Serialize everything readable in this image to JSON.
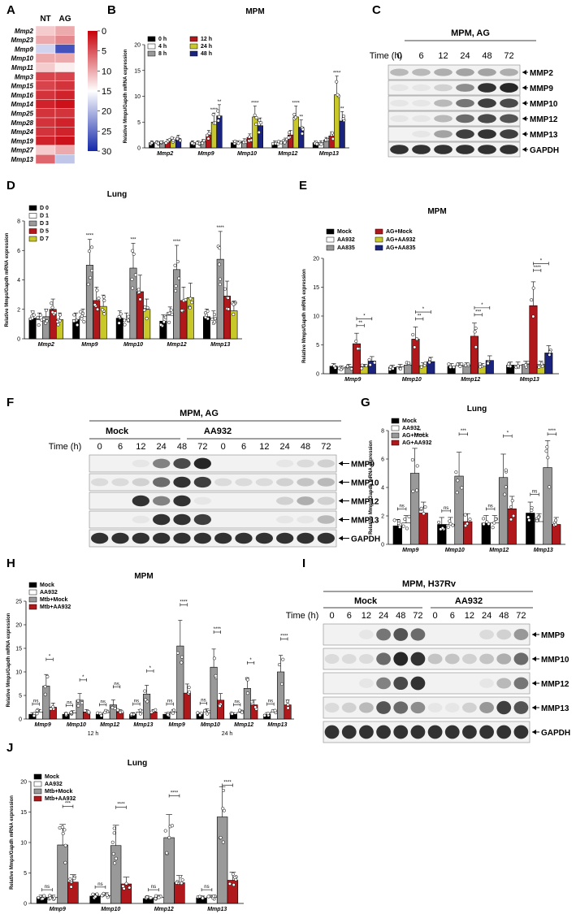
{
  "colors": {
    "black": "#000000",
    "white": "#ffffff",
    "grey": "#999999",
    "red": "#b0181c",
    "olive": "#c8c82a",
    "navy": "#1a237e"
  },
  "panel_A": {
    "letter": "A",
    "columns": [
      "NT",
      "AG"
    ],
    "genes": [
      "Mmp2",
      "Mmp23",
      "Mmp9",
      "Mmp10",
      "Mmp11",
      "Mmp3",
      "Mmp15",
      "Mmp16",
      "Mmp14",
      "Mmp25",
      "Mmp28",
      "Mmp24",
      "Mmp19",
      "Mmp27",
      "Mmp13"
    ],
    "values": [
      [
        12,
        10
      ],
      [
        10,
        8
      ],
      [
        18,
        27
      ],
      [
        10,
        10
      ],
      [
        12,
        14
      ],
      [
        4,
        4
      ],
      [
        4,
        3
      ],
      [
        3,
        2
      ],
      [
        2,
        1
      ],
      [
        3,
        3
      ],
      [
        3,
        2
      ],
      [
        3,
        2
      ],
      [
        2,
        1
      ],
      [
        12,
        10
      ],
      [
        6,
        19
      ]
    ],
    "colorbar_ticks": [
      "0",
      "5",
      "10",
      "15",
      "20",
      "25",
      "30"
    ]
  },
  "panel_B": {
    "letter": "B",
    "title": "MPM"
  },
  "panel_C": {
    "letter": "C",
    "header": "MPM, AG",
    "time_label": "Time (h)",
    "times": [
      "0",
      "6",
      "12",
      "24",
      "48",
      "72"
    ],
    "bands": [
      "MMP2",
      "MMP9",
      "MMP10",
      "MMP12",
      "MMP13",
      "GAPDH"
    ]
  },
  "panel_D": {
    "letter": "D",
    "title": "Lung"
  },
  "panel_E": {
    "letter": "E",
    "title": "MPM"
  },
  "panel_F": {
    "letter": "F",
    "header": "MPM, AG",
    "groups": [
      "Mock",
      "AA932"
    ],
    "time_label": "Time (h)",
    "times": [
      "0",
      "6",
      "12",
      "24",
      "48",
      "72",
      "0",
      "6",
      "12",
      "24",
      "48",
      "72"
    ],
    "bands": [
      "MMP9",
      "MMP10",
      "MMP12",
      "MMP13",
      "GAPDH"
    ]
  },
  "panel_G": {
    "letter": "G",
    "title": "Lung"
  },
  "panel_H": {
    "letter": "H",
    "title": "MPM",
    "timepoints": [
      "12 h",
      "24 h"
    ]
  },
  "panel_I": {
    "letter": "I",
    "header": "MPM, H37Rv",
    "groups": [
      "Mock",
      "AA932"
    ],
    "time_label": "Time (h)",
    "times": [
      "0",
      "6",
      "12",
      "24",
      "48",
      "72",
      "0",
      "6",
      "12",
      "24",
      "48",
      "72"
    ],
    "bands": [
      "MMP9",
      "MMP10",
      "MMP12",
      "MMP13",
      "GAPDH"
    ]
  },
  "panel_J": {
    "letter": "J",
    "title": "Lung"
  },
  "chart_data": [
    {
      "id": "B",
      "type": "bar",
      "title": "MPM",
      "ylabel": "Relative Mmps/Gapdh mRNA expression",
      "ylim": [
        0,
        20
      ],
      "yticks": [
        0,
        5,
        10,
        15,
        20
      ],
      "categories": [
        "Mmp2",
        "Mmp9",
        "Mmp10",
        "Mmp12",
        "Mmp13"
      ],
      "series": [
        {
          "name": "0 h",
          "color": "#000000",
          "values": [
            1,
            1,
            1,
            1,
            1
          ]
        },
        {
          "name": "4 h",
          "color": "#ffffff",
          "values": [
            1,
            1,
            1,
            1,
            1
          ]
        },
        {
          "name": "8 h",
          "color": "#999999",
          "values": [
            1,
            1.2,
            1.3,
            1.4,
            1.5
          ]
        },
        {
          "name": "12 h",
          "color": "#b0181c",
          "values": [
            1.2,
            2.5,
            2,
            2.5,
            2.3
          ]
        },
        {
          "name": "24 h",
          "color": "#c8c82a",
          "values": [
            1.5,
            5,
            6,
            6,
            10.3
          ]
        },
        {
          "name": "48 h",
          "color": "#1a237e",
          "values": [
            1.8,
            6.2,
            4.3,
            4,
            5.2
          ]
        }
      ],
      "signif": [
        [
          "",
          "",
          "",
          "",
          ""
        ],
        [
          "",
          "",
          "",
          "",
          ""
        ],
        [
          "",
          "",
          "",
          "",
          ""
        ],
        [
          "",
          "",
          "",
          "",
          ""
        ],
        [
          "",
          "****",
          "****",
          "****",
          "****"
        ],
        [
          "",
          "**",
          "",
          "**",
          "**"
        ]
      ]
    },
    {
      "id": "D",
      "type": "bar",
      "title": "Lung",
      "ylabel": "Relative Mmps/Gapdh mRNA expression",
      "ylim": [
        0,
        8
      ],
      "yticks": [
        0,
        2,
        4,
        6,
        8
      ],
      "categories": [
        "Mmp2",
        "Mmp9",
        "Mmp10",
        "Mmp12",
        "Mmp13"
      ],
      "series": [
        {
          "name": "D 0",
          "color": "#000000",
          "values": [
            1.4,
            1.3,
            1.4,
            1.2,
            1.5
          ]
        },
        {
          "name": "D 1",
          "color": "#ffffff",
          "values": [
            1.3,
            1.5,
            1.3,
            1.6,
            1.4
          ]
        },
        {
          "name": "D 3",
          "color": "#999999",
          "values": [
            1.5,
            5,
            4.8,
            4.7,
            5.4
          ]
        },
        {
          "name": "D 5",
          "color": "#b0181c",
          "values": [
            2,
            2.6,
            3.2,
            2.6,
            2.9
          ]
        },
        {
          "name": "D 7",
          "color": "#c8c82a",
          "values": [
            1.3,
            2.2,
            2,
            2.8,
            1.9
          ]
        }
      ],
      "signif_group": [
        null,
        "****",
        "***",
        "****",
        "****"
      ]
    },
    {
      "id": "E",
      "type": "bar",
      "title": "MPM",
      "ylabel": "Relative Mmps/Gapdh mRNA expression",
      "ylim": [
        0,
        20
      ],
      "yticks": [
        0,
        5,
        10,
        15,
        20
      ],
      "categories": [
        "Mmp9",
        "Mmp10",
        "Mmp12",
        "Mmp13"
      ],
      "series": [
        {
          "name": "Mock",
          "color": "#000000",
          "values": [
            1.3,
            1.1,
            1.3,
            1.5
          ]
        },
        {
          "name": "AA932",
          "color": "#ffffff",
          "values": [
            1,
            1.2,
            1.4,
            1.5
          ]
        },
        {
          "name": "AA835",
          "color": "#999999",
          "values": [
            1.2,
            1.5,
            1.4,
            1.6
          ]
        },
        {
          "name": "AG+Mock",
          "color": "#b0181c",
          "values": [
            5.2,
            6,
            6.5,
            11.8
          ]
        },
        {
          "name": "AG+AA932",
          "color": "#c8c82a",
          "values": [
            1.2,
            1.4,
            1.3,
            1.6
          ]
        },
        {
          "name": "AG+AA835",
          "color": "#1a237e",
          "values": [
            2.2,
            2.1,
            2.3,
            3.6
          ]
        }
      ],
      "brackets": [
        [
          "**",
          "*"
        ],
        [
          "**",
          "*"
        ],
        [
          "***",
          "*"
        ],
        [
          "****",
          "*"
        ]
      ]
    },
    {
      "id": "G",
      "type": "bar",
      "title": "Lung",
      "ylabel": "Relative Mmps/Gapdh mRNA expression",
      "ylim": [
        0,
        8
      ],
      "yticks": [
        0,
        2,
        4,
        6,
        8
      ],
      "categories": [
        "Mmp9",
        "Mmp10",
        "Mmp12",
        "Mmp13"
      ],
      "series": [
        {
          "name": "Mock",
          "color": "#000000",
          "values": [
            1.3,
            1.4,
            1.5,
            2.2
          ]
        },
        {
          "name": "AA932",
          "color": "#ffffff",
          "values": [
            1.5,
            1.4,
            1.5,
            1.6
          ]
        },
        {
          "name": "AG+Mock",
          "color": "#999999",
          "values": [
            5,
            4.8,
            4.7,
            5.4
          ]
        },
        {
          "name": "AG+AA932",
          "color": "#b0181c",
          "values": [
            2.2,
            1.6,
            2.5,
            1.4
          ]
        }
      ],
      "brackets": [
        [
          "ns",
          "**"
        ],
        [
          "ns",
          "***"
        ],
        [
          "ns",
          "*"
        ],
        [
          "ns",
          "****"
        ]
      ]
    },
    {
      "id": "H",
      "type": "bar",
      "title": "MPM",
      "ylabel": "Relative Mmps/Gapdh mRNA expression",
      "ylim": [
        0,
        25
      ],
      "yticks": [
        0,
        5,
        10,
        15,
        20,
        25
      ],
      "categories": [
        "Mmp9",
        "Mmp10",
        "Mmp12",
        "Mmp13",
        "Mmp9",
        "Mmp10",
        "Mmp12",
        "Mmp13"
      ],
      "series": [
        {
          "name": "Mock",
          "color": "#000000",
          "values": [
            1,
            1,
            1,
            1,
            1,
            1,
            1,
            1
          ]
        },
        {
          "name": "AA932",
          "color": "#ffffff",
          "values": [
            1.5,
            1.3,
            1.4,
            1.5,
            1.5,
            1.6,
            1.4,
            1.5
          ]
        },
        {
          "name": "Mtb+Mock",
          "color": "#999999",
          "values": [
            7,
            4,
            3,
            5.3,
            15.5,
            11,
            6.5,
            10
          ]
        },
        {
          "name": "Mtb+AA932",
          "color": "#b0181c",
          "values": [
            2.5,
            1.5,
            1.5,
            1.5,
            5.5,
            4,
            3,
            3
          ]
        }
      ],
      "brackets": [
        [
          "ns",
          "*"
        ],
        [
          "ns",
          "*"
        ],
        [
          "ns",
          "ns"
        ],
        [
          "ns",
          "*"
        ],
        [
          "ns",
          "****"
        ],
        [
          "ns",
          "****"
        ],
        [
          "ns",
          "*"
        ],
        [
          "ns",
          "****"
        ]
      ]
    },
    {
      "id": "J",
      "type": "bar",
      "title": "Lung",
      "ylabel": "Relative Mmps/Gapdh mRNA expression",
      "ylim": [
        0,
        20
      ],
      "yticks": [
        0,
        5,
        10,
        15,
        20
      ],
      "categories": [
        "Mmp9",
        "Mmp10",
        "Mmp12",
        "Mmp13"
      ],
      "series": [
        {
          "name": "Mock",
          "color": "#000000",
          "values": [
            1,
            1.2,
            0.8,
            0.9
          ]
        },
        {
          "name": "AA932",
          "color": "#ffffff",
          "values": [
            1,
            1.3,
            1,
            1
          ]
        },
        {
          "name": "Mtb+Mock",
          "color": "#999999",
          "values": [
            9.6,
            9.5,
            10.8,
            14.2
          ]
        },
        {
          "name": "Mtb+AA932",
          "color": "#b0181c",
          "values": [
            3.5,
            3.2,
            3.4,
            3.8
          ]
        }
      ],
      "brackets": [
        [
          "ns",
          "***"
        ],
        [
          "ns",
          "****"
        ],
        [
          "ns",
          "****"
        ],
        [
          "ns",
          "****"
        ]
      ]
    }
  ]
}
